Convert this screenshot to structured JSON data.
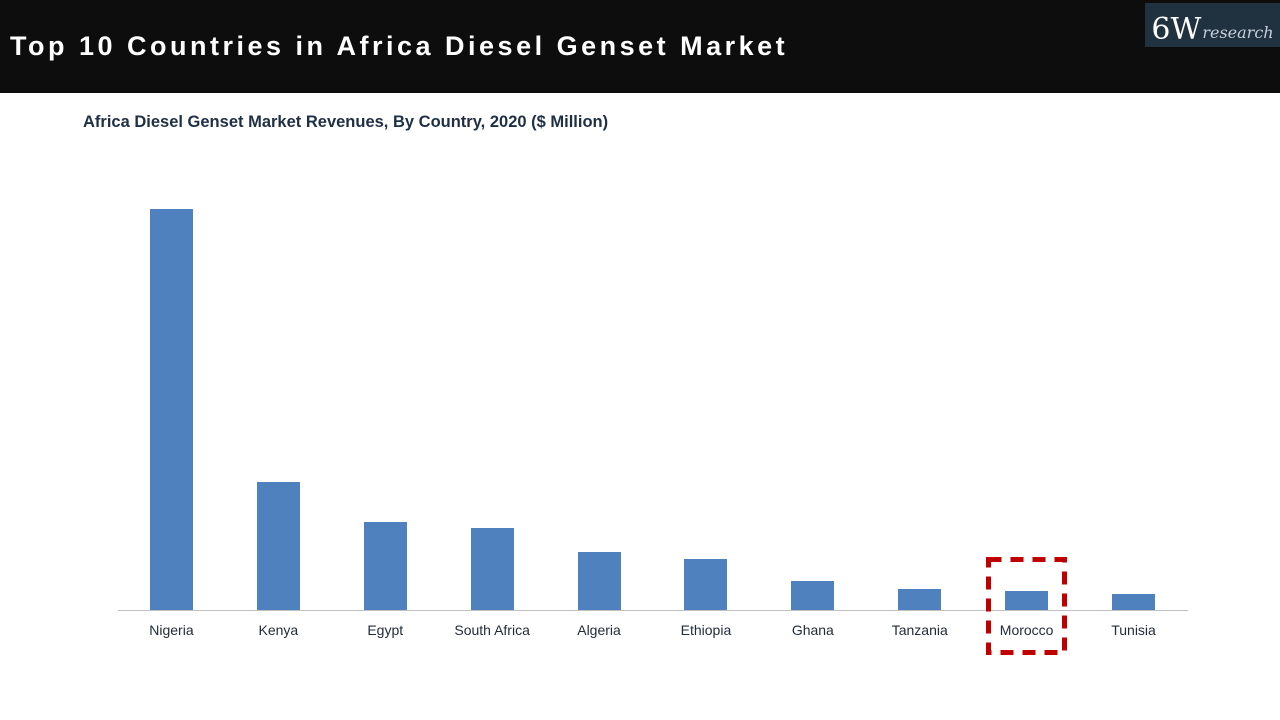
{
  "header": {
    "title": "Top 10 Countries in Africa Diesel Genset Market",
    "background": "#0D0D0D",
    "text_color": "#FFFFFF",
    "logo": {
      "main": "6W",
      "sub": "research",
      "background": "#203140",
      "main_color": "#FFFFFF",
      "sub_color": "#C6CFD8"
    }
  },
  "chart_data": {
    "type": "bar",
    "title": "Africa Diesel Genset Market Revenues, By Country, 2020 ($ Million)",
    "title_color": "#1F3044",
    "categories": [
      "Nigeria",
      "Kenya",
      "Egypt",
      "South Africa",
      "Algeria",
      "Ethiopia",
      "Ghana",
      "Tanzania",
      "Morocco",
      "Tunisia"
    ],
    "values": [
      401,
      128,
      88,
      82,
      58,
      51,
      29,
      21,
      19,
      16
    ],
    "value_note": "No value axis or data labels are shown; values are relative bar heights estimated from the image",
    "xlabel": "",
    "ylabel": "",
    "ylim": [
      0,
      420
    ],
    "value_axis_visible": false,
    "gridlines": false,
    "legend": false,
    "bar_color": "#4E81BD",
    "axis_line_color": "#C0C0C0",
    "label_color": "#1F2B38",
    "highlight": {
      "category": "Morocco",
      "shape": "dashed-rectangle",
      "color": "#C00000"
    }
  }
}
